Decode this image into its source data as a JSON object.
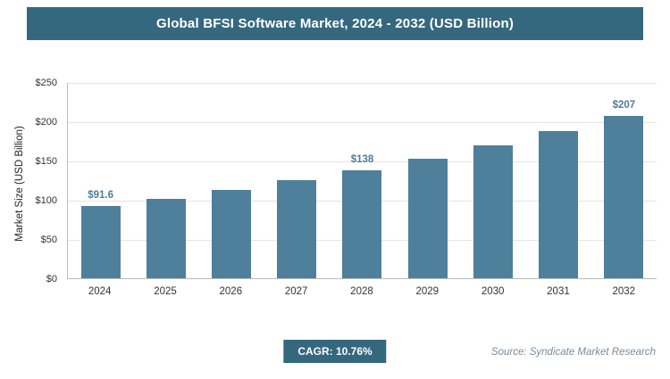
{
  "title": "Global BFSI Software Market, 2024 - 2032 (USD Billion)",
  "colors": {
    "banner": "#35687f",
    "bar": "#4e7f9b",
    "label": "#4e7d96"
  },
  "footer": {
    "cagr_label": "CAGR: 10.76%",
    "source": "Source: Syndicate Market Research"
  },
  "chart_data": {
    "type": "bar",
    "title": "Global BFSI Software Market, 2024 - 2032 (USD Billion)",
    "categories": [
      "2024",
      "2025",
      "2026",
      "2027",
      "2028",
      "2029",
      "2030",
      "2031",
      "2032"
    ],
    "values": [
      91.6,
      101.5,
      112.4,
      124.5,
      138,
      152.7,
      169.1,
      187.3,
      207
    ],
    "data_labels": {
      "2024": "$91.6",
      "2028": "$138",
      "2032": "$207"
    },
    "xlabel": "",
    "ylabel": "Market Size (USD Billion)",
    "ylim": [
      0,
      250
    ],
    "ytick_step": 50,
    "yticks": [
      "$0",
      "$50",
      "$100",
      "$150",
      "$200",
      "$250"
    ],
    "grid": true,
    "legend": "none"
  }
}
